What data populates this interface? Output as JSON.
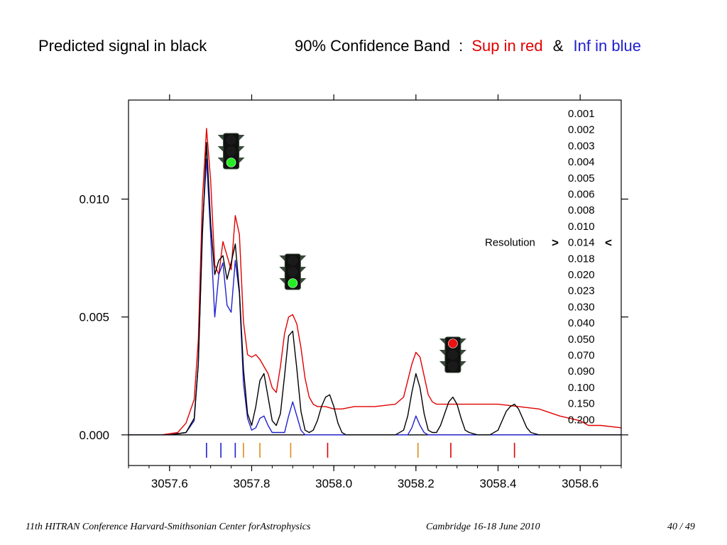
{
  "header": {
    "left": "Predicted signal in black",
    "band_label": "90% Confidence Band",
    "colon": ":",
    "sup": "Sup in red",
    "amp": "&",
    "inf": "Inf in blue"
  },
  "footer": {
    "conference": "11th HITRAN Conference  Harvard-Smithsonian Center forAstrophysics",
    "place": "Cambridge 16-18 June 2010",
    "page": "40 / 49"
  },
  "resolution": {
    "label": "Resolution",
    "left_marker": ">",
    "right_marker": "<",
    "items": [
      "0.001",
      "0.002",
      "0.003",
      "0.004",
      "0.005",
      "0.006",
      "0.008",
      "0.010",
      "0.014",
      "0.018",
      "0.020",
      "0.023",
      "0.030",
      "0.040",
      "0.050",
      "0.070",
      "0.090",
      "0.100",
      "0.150",
      "0.200"
    ],
    "selected": "0.014"
  },
  "traffic_lights": [
    {
      "x": 3057.75,
      "lit": "green-icon",
      "color": "#22ee22"
    },
    {
      "x": 3057.9,
      "lit": "green-icon",
      "color": "#22ee22"
    },
    {
      "x": 3058.29,
      "lit": "red-icon",
      "color": "#ee1111"
    }
  ],
  "colors": {
    "sup": "#e00000",
    "inf": "#2020d0",
    "signal": "#000000",
    "orange": "#e08a1a"
  },
  "chart_data": {
    "type": "line",
    "title": "",
    "xlabel": "",
    "ylabel": "",
    "xlim": [
      3057.5,
      3058.7
    ],
    "ylim": [
      -0.0013,
      0.0142
    ],
    "xticks": [
      "3057.6",
      "3057.8",
      "3058.0",
      "3058.2",
      "3058.4",
      "3058.6"
    ],
    "yticks": [
      "0.000",
      "0.005",
      "0.010"
    ],
    "series": [
      {
        "color": "#000000",
        "x": [
          3057.5,
          3057.6,
          3057.64,
          3057.66,
          3057.67,
          3057.68,
          3057.69,
          3057.7,
          3057.71,
          3057.72,
          3057.73,
          3057.74,
          3057.75,
          3057.76,
          3057.77,
          3057.78,
          3057.79,
          3057.8,
          3057.81,
          3057.82,
          3057.83,
          3057.84,
          3057.85,
          3057.86,
          3057.87,
          3057.88,
          3057.89,
          3057.9,
          3057.91,
          3057.92,
          3057.93,
          3057.94,
          3057.95,
          3057.96,
          3057.97,
          3057.98,
          3057.99,
          3058.0,
          3058.01,
          3058.02,
          3058.03,
          3058.05,
          3058.1,
          3058.15,
          3058.17,
          3058.18,
          3058.19,
          3058.2,
          3058.21,
          3058.22,
          3058.23,
          3058.24,
          3058.25,
          3058.26,
          3058.27,
          3058.28,
          3058.29,
          3058.3,
          3058.31,
          3058.32,
          3058.33,
          3058.35,
          3058.38,
          3058.4,
          3058.41,
          3058.42,
          3058.43,
          3058.44,
          3058.45,
          3058.46,
          3058.47,
          3058.48,
          3058.5,
          3058.7
        ],
        "y": [
          0,
          0,
          0.0001,
          0.0007,
          0.003,
          0.0085,
          0.0124,
          0.009,
          0.0068,
          0.0074,
          0.0076,
          0.0066,
          0.0073,
          0.0081,
          0.0061,
          0.0028,
          0.0009,
          0.0004,
          0.0012,
          0.0023,
          0.0026,
          0.0016,
          0.0006,
          0.0004,
          0.0009,
          0.0025,
          0.0042,
          0.0044,
          0.0028,
          0.001,
          0.0002,
          0.0001,
          0.0002,
          0.0006,
          0.0012,
          0.0016,
          0.0017,
          0.0012,
          0.0005,
          0.0001,
          0,
          0,
          0,
          0,
          0.0002,
          0.0008,
          0.0018,
          0.0026,
          0.002,
          0.0009,
          0.0002,
          0.0001,
          0.0001,
          0.0004,
          0.0009,
          0.0014,
          0.0016,
          0.0013,
          0.0007,
          0.0002,
          0.0001,
          0,
          0,
          0.0002,
          0.0006,
          0.001,
          0.0012,
          0.0013,
          0.0011,
          0.0007,
          0.0003,
          0.0001,
          0,
          0
        ]
      },
      {
        "color": "#e00000",
        "x": [
          3057.5,
          3057.58,
          3057.62,
          3057.64,
          3057.66,
          3057.67,
          3057.68,
          3057.69,
          3057.7,
          3057.71,
          3057.72,
          3057.73,
          3057.74,
          3057.75,
          3057.76,
          3057.77,
          3057.78,
          3057.79,
          3057.8,
          3057.81,
          3057.82,
          3057.83,
          3057.84,
          3057.85,
          3057.86,
          3057.87,
          3057.88,
          3057.89,
          3057.9,
          3057.91,
          3057.92,
          3057.93,
          3057.94,
          3057.95,
          3057.96,
          3057.98,
          3058.0,
          3058.02,
          3058.05,
          3058.1,
          3058.15,
          3058.17,
          3058.18,
          3058.19,
          3058.2,
          3058.21,
          3058.22,
          3058.23,
          3058.24,
          3058.25,
          3058.28,
          3058.32,
          3058.36,
          3058.4,
          3058.45,
          3058.5,
          3058.55,
          3058.6,
          3058.62,
          3058.65,
          3058.7
        ],
        "y": [
          0,
          0,
          0.0001,
          0.0005,
          0.0015,
          0.004,
          0.01,
          0.013,
          0.0108,
          0.0072,
          0.0068,
          0.0082,
          0.0076,
          0.007,
          0.0093,
          0.0085,
          0.0048,
          0.0034,
          0.0033,
          0.0034,
          0.0032,
          0.0029,
          0.0026,
          0.002,
          0.0018,
          0.0029,
          0.0043,
          0.005,
          0.0051,
          0.0047,
          0.0037,
          0.0024,
          0.0016,
          0.0013,
          0.0012,
          0.0012,
          0.0011,
          0.0011,
          0.0012,
          0.0012,
          0.0013,
          0.0016,
          0.0023,
          0.003,
          0.0035,
          0.0033,
          0.0025,
          0.0017,
          0.0014,
          0.0013,
          0.0013,
          0.0013,
          0.0013,
          0.0013,
          0.0012,
          0.0011,
          0.0008,
          0.0006,
          0.0004,
          0.0004,
          0.0003
        ]
      },
      {
        "color": "#2020d0",
        "x": [
          3057.5,
          3057.6,
          3057.64,
          3057.66,
          3057.67,
          3057.68,
          3057.69,
          3057.7,
          3057.71,
          3057.72,
          3057.73,
          3057.74,
          3057.75,
          3057.76,
          3057.77,
          3057.78,
          3057.79,
          3057.8,
          3057.81,
          3057.82,
          3057.83,
          3057.84,
          3057.85,
          3057.88,
          3057.89,
          3057.9,
          3057.91,
          3057.92,
          3057.93,
          3058.18,
          3058.19,
          3058.2,
          3058.21,
          3058.22,
          3058.23,
          3058.7
        ],
        "y": [
          0,
          0,
          0.0001,
          0.0006,
          0.003,
          0.0088,
          0.0117,
          0.0085,
          0.005,
          0.0068,
          0.0073,
          0.0055,
          0.0052,
          0.0074,
          0.006,
          0.0022,
          0.0007,
          0.0002,
          0.0003,
          0.0007,
          0.0008,
          0.0004,
          0.0001,
          0.0001,
          0.0008,
          0.0014,
          0.0008,
          0.0002,
          0,
          0,
          0.0003,
          0.0008,
          0.0004,
          0.0001,
          0,
          0
        ]
      }
    ],
    "line_markers": [
      {
        "x": 3057.69,
        "color": "#2020d0"
      },
      {
        "x": 3057.725,
        "color": "#2020d0"
      },
      {
        "x": 3057.76,
        "color": "#2020d0"
      },
      {
        "x": 3057.78,
        "color": "#e08a1a"
      },
      {
        "x": 3057.82,
        "color": "#e08a1a"
      },
      {
        "x": 3057.895,
        "color": "#e08a1a"
      },
      {
        "x": 3057.985,
        "color": "#e00000"
      },
      {
        "x": 3058.205,
        "color": "#e08a1a"
      },
      {
        "x": 3058.285,
        "color": "#e00000"
      },
      {
        "x": 3058.44,
        "color": "#e00000"
      }
    ]
  }
}
